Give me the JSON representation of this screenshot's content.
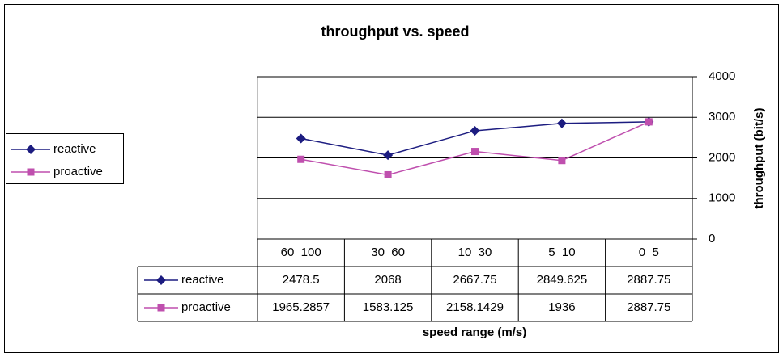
{
  "chart_data": {
    "type": "line",
    "title": "throughput vs. speed",
    "x_label": "speed range (m/s)",
    "y_label": "throughput (bit/s)",
    "categories": [
      "60_100",
      "30_60",
      "10_30",
      "5_10",
      "0_5"
    ],
    "series": [
      {
        "name": "reactive",
        "color": "#1c1c80",
        "marker": "diamond",
        "values": [
          2478.5,
          2068,
          2667.75,
          2849.625,
          2887.75
        ]
      },
      {
        "name": "proactive",
        "color": "#bf4fae",
        "marker": "square",
        "values": [
          1965.2857,
          1583.125,
          2158.1429,
          1936,
          2887.75
        ]
      }
    ],
    "ylim": [
      0,
      4000
    ],
    "yticks": [
      0,
      1000,
      2000,
      3000,
      4000
    ],
    "grid": true,
    "legend": "left",
    "data_table": true
  }
}
